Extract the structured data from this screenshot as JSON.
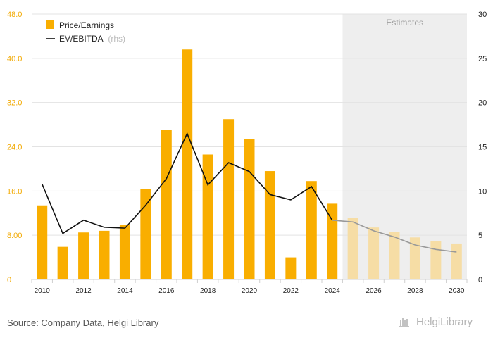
{
  "chart_data": {
    "type": "bar",
    "categories": [
      "2010",
      "2011",
      "2012",
      "2013",
      "2014",
      "2015",
      "2016",
      "2017",
      "2018",
      "2019",
      "2020",
      "2021",
      "2022",
      "2023",
      "2024",
      "2025",
      "2026",
      "2027",
      "2028",
      "2029",
      "2030"
    ],
    "series": [
      {
        "name": "Price/Earnings",
        "kind": "bar",
        "axis": "left",
        "values": [
          13.4,
          5.9,
          8.5,
          8.8,
          9.8,
          16.3,
          27.0,
          41.6,
          22.6,
          29.0,
          25.4,
          19.6,
          4.0,
          17.8,
          13.7,
          11.2,
          9.4,
          8.6,
          7.6,
          6.9,
          6.5
        ]
      },
      {
        "name": "EV/EBITDA",
        "name_suffix": "(rhs)",
        "kind": "line",
        "axis": "right",
        "values": [
          10.8,
          5.2,
          6.7,
          5.9,
          5.8,
          8.4,
          11.4,
          16.5,
          10.7,
          13.2,
          12.2,
          9.6,
          9.0,
          10.5,
          6.7,
          6.5,
          5.5,
          4.8,
          3.9,
          3.4,
          3.1
        ]
      }
    ],
    "estimates_from_index": 15,
    "estimates_label": "Estimates",
    "left_axis": {
      "ylim": [
        0,
        48
      ],
      "ticks": [
        "0",
        "8.00",
        "16.0",
        "24.0",
        "32.0",
        "40.0",
        "48.0"
      ]
    },
    "right_axis": {
      "ylim": [
        0,
        30
      ],
      "ticks": [
        "0",
        "5",
        "10",
        "15",
        "20",
        "25",
        "30"
      ]
    },
    "x_tick_labels": [
      "2010",
      "2012",
      "2014",
      "2016",
      "2018",
      "2020",
      "2022",
      "2024",
      "2026",
      "2028",
      "2030"
    ],
    "grid": true,
    "legend_position": "top-left",
    "colors": {
      "bar": "#F9AE00",
      "bar_estimate": "#F6DDA5",
      "line": "#111111",
      "line_estimate": "#999999",
      "estimate_bg": "#EEEEEE",
      "left_tick": "#F2A900",
      "grid": "#E3E3E3"
    }
  },
  "footer": {
    "source": "Source: Company Data, Helgi Library",
    "logo_text": "HelgiLibrary"
  }
}
